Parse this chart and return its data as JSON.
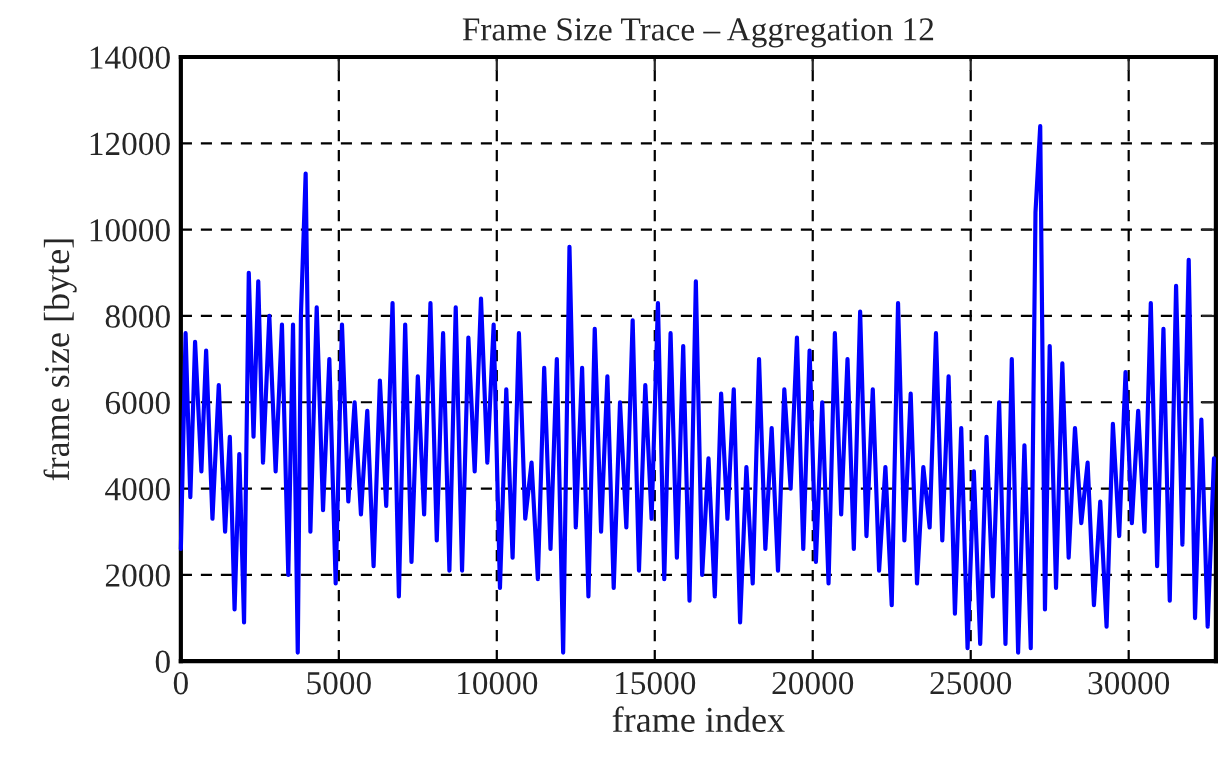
{
  "chart_data": {
    "type": "line",
    "title": "Frame Size Trace – Aggregation 12",
    "xlabel": "frame index",
    "ylabel": "frame size [byte]",
    "xlim": [
      0,
      32760
    ],
    "ylim": [
      0,
      14000
    ],
    "xticks": [
      0,
      5000,
      10000,
      15000,
      20000,
      25000,
      30000
    ],
    "yticks": [
      0,
      2000,
      4000,
      6000,
      8000,
      10000,
      12000,
      14000
    ],
    "grid": true,
    "marker": "none",
    "line_style": "solid",
    "series": [
      {
        "color": "#0000ff",
        "x": [
          0,
          150,
          300,
          450,
          650,
          800,
          1000,
          1200,
          1400,
          1550,
          1700,
          1850,
          2000,
          2150,
          2300,
          2450,
          2600,
          2800,
          3000,
          3200,
          3400,
          3550,
          3700,
          3800,
          3950,
          4100,
          4300,
          4500,
          4700,
          4900,
          5100,
          5300,
          5500,
          5700,
          5900,
          6100,
          6300,
          6500,
          6700,
          6900,
          7100,
          7300,
          7500,
          7700,
          7900,
          8100,
          8300,
          8500,
          8700,
          8900,
          9100,
          9300,
          9500,
          9700,
          9900,
          10100,
          10300,
          10500,
          10700,
          10900,
          11100,
          11300,
          11500,
          11700,
          11900,
          12100,
          12300,
          12500,
          12700,
          12900,
          13100,
          13300,
          13500,
          13700,
          13900,
          14100,
          14300,
          14500,
          14700,
          14900,
          15100,
          15300,
          15500,
          15700,
          15900,
          16100,
          16300,
          16500,
          16700,
          16900,
          17100,
          17300,
          17500,
          17700,
          17900,
          18100,
          18300,
          18500,
          18700,
          18900,
          19100,
          19300,
          19500,
          19700,
          19900,
          20100,
          20300,
          20500,
          20700,
          20900,
          21100,
          21300,
          21500,
          21700,
          21900,
          22100,
          22300,
          22500,
          22700,
          22900,
          23100,
          23300,
          23500,
          23700,
          23900,
          24100,
          24300,
          24500,
          24700,
          24900,
          25100,
          25300,
          25500,
          25700,
          25900,
          26100,
          26300,
          26500,
          26700,
          26900,
          27050,
          27200,
          27350,
          27500,
          27700,
          27900,
          28100,
          28300,
          28500,
          28700,
          28900,
          29100,
          29300,
          29500,
          29700,
          29900,
          30100,
          30300,
          30500,
          30700,
          30900,
          31100,
          31300,
          31500,
          31700,
          31900,
          32100,
          32300,
          32500,
          32700
        ],
        "values": [
          2600,
          7600,
          3800,
          7400,
          4400,
          7200,
          3300,
          6400,
          3000,
          5200,
          1200,
          4800,
          900,
          9000,
          5200,
          8800,
          4600,
          8000,
          4400,
          7800,
          2000,
          7800,
          200,
          8000,
          11300,
          3000,
          8200,
          3500,
          7000,
          1800,
          7800,
          3700,
          6000,
          3400,
          5800,
          2200,
          6500,
          3600,
          8300,
          1500,
          7800,
          2300,
          6600,
          3400,
          8300,
          2800,
          7600,
          2100,
          8200,
          2100,
          7500,
          4400,
          8400,
          4600,
          7800,
          1700,
          6300,
          2400,
          7600,
          3300,
          4600,
          1900,
          6800,
          2600,
          7000,
          200,
          9600,
          3100,
          6800,
          1500,
          7700,
          3000,
          6600,
          1700,
          6000,
          3100,
          7900,
          2100,
          6400,
          3300,
          8300,
          1900,
          7600,
          2400,
          7300,
          1400,
          8800,
          2000,
          4700,
          1500,
          6200,
          3300,
          6300,
          900,
          4500,
          1800,
          7000,
          2600,
          5400,
          2100,
          6300,
          4000,
          7500,
          2600,
          7200,
          2300,
          6000,
          1800,
          7600,
          3400,
          7000,
          2600,
          8100,
          2900,
          6300,
          2100,
          4500,
          1300,
          8300,
          2800,
          6200,
          1800,
          4500,
          3100,
          7600,
          2800,
          6600,
          1100,
          5400,
          300,
          4400,
          400,
          5200,
          1500,
          6000,
          400,
          7000,
          200,
          5000,
          300,
          10400,
          12400,
          1200,
          7300,
          1700,
          6900,
          2400,
          5400,
          3200,
          4600,
          1300,
          3700,
          800,
          5500,
          2900,
          6700,
          3200,
          5800,
          3000,
          8300,
          2200,
          7700,
          1400,
          8700,
          2700,
          9300,
          1000,
          5600,
          800,
          4700
        ]
      }
    ]
  }
}
